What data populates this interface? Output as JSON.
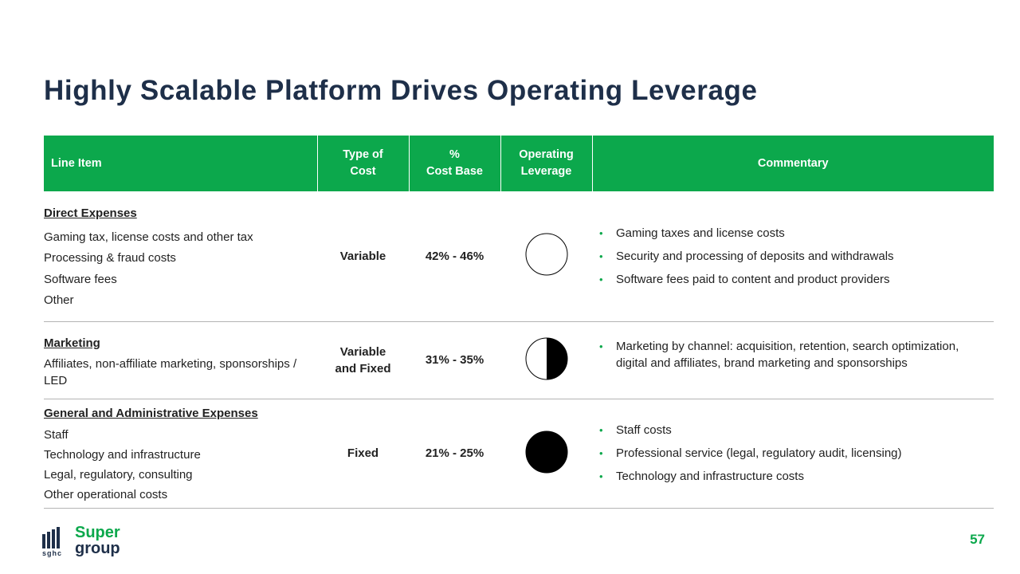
{
  "title": "Highly Scalable Platform Drives Operating Leverage",
  "colors": {
    "accent": "#0ca84c",
    "title": "#1e2f49"
  },
  "table": {
    "headers": {
      "line_item": "Line Item",
      "type_of_cost": [
        "Type of",
        "Cost"
      ],
      "pct_cost_base": [
        "%",
        "Cost Base"
      ],
      "operating_leverage": [
        "Operating",
        "Leverage"
      ],
      "commentary": "Commentary"
    },
    "rows": [
      {
        "heading": "Direct Expenses",
        "items": [
          "Gaming tax, license costs and other tax",
          "Processing & fraud costs",
          "Software fees",
          "Other"
        ],
        "type": [
          "Variable"
        ],
        "pct": "42% - 46%",
        "leverage_icon": "empty-circle-icon",
        "leverage_fill": 0,
        "commentary": [
          "Gaming taxes and license costs",
          "Security and processing of deposits and withdrawals",
          "Software fees paid to content and product providers"
        ]
      },
      {
        "heading": "Marketing",
        "items": [
          "Affiliates, non-affiliate marketing, sponsorships / LED"
        ],
        "type": [
          "Variable",
          "and Fixed"
        ],
        "pct": "31% - 35%",
        "leverage_icon": "half-filled-circle-icon",
        "leverage_fill": 0.5,
        "commentary": [
          "Marketing by channel: acquisition, retention, search optimization, digital and affiliates, brand marketing and sponsorships"
        ]
      },
      {
        "heading": "General and Administrative Expenses",
        "items": [
          "Staff",
          "Technology and infrastructure",
          "Legal, regulatory, consulting",
          "Other operational costs"
        ],
        "type": [
          "Fixed"
        ],
        "pct": "21% - 25%",
        "leverage_icon": "filled-circle-icon",
        "leverage_fill": 1,
        "commentary": [
          "Staff costs",
          "Professional service (legal, regulatory audit, licensing)",
          "Technology and infrastructure costs"
        ]
      }
    ]
  },
  "logo": {
    "line1": "Super",
    "line2": "group",
    "small": "sghc"
  },
  "page_number": "57"
}
